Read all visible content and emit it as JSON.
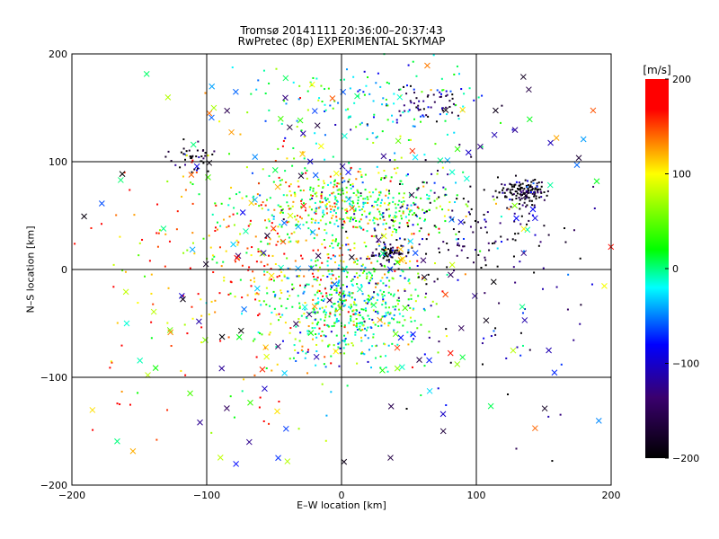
{
  "chart": {
    "title_line1": "Tromsø 20141111 20:36:00–20:37:43",
    "title_line2": "RwPretec (8p) EXPERIMENTAL SKYMAP",
    "xlabel": "E–W location [km]",
    "ylabel": "N–S location [km]",
    "colorbar_label": "[m/s]"
  },
  "chart_data": {
    "type": "scatter",
    "title": "Tromsø 20141111 20:36:00–20:37:43",
    "subtitle": "RwPretec (8p) EXPERIMENTAL SKYMAP",
    "xlabel": "E–W location [km]",
    "ylabel": "N–S location [km]",
    "xlim": [
      -200,
      200
    ],
    "ylim": [
      -200,
      200
    ],
    "xticks": [
      -200,
      -100,
      0,
      100,
      200
    ],
    "yticks": [
      -200,
      -100,
      0,
      100,
      200
    ],
    "grid": true,
    "colorbar": {
      "label": "[m/s]",
      "range": [
        -200,
        200
      ],
      "ticks": [
        200,
        100,
        0,
        -100,
        -200
      ],
      "colormap": [
        "#000000",
        "#3a006e",
        "#0000ff",
        "#00ffff",
        "#00ff00",
        "#ffff00",
        "#ff0000"
      ]
    },
    "markers": [
      "dot",
      "cross"
    ],
    "clusters": [
      {
        "x": 135,
        "y": 72,
        "spread": [
          9,
          6
        ],
        "count": 140,
        "velocity": -200,
        "marker": "dot"
      },
      {
        "x": 38,
        "y": 15,
        "spread": [
          7,
          3
        ],
        "count": 60,
        "velocity": -200,
        "marker": "dot"
      },
      {
        "x": -112,
        "y": 105,
        "spread": [
          9,
          7
        ],
        "count": 40,
        "velocity": -195,
        "marker": "dot"
      },
      {
        "x": 60,
        "y": 155,
        "spread": [
          18,
          8
        ],
        "count": 60,
        "velocity": -140,
        "marker": "dot"
      },
      {
        "x": 5,
        "y": -35,
        "spread": [
          28,
          25
        ],
        "count": 500,
        "velocity": 30,
        "marker": "dot"
      },
      {
        "x": 10,
        "y": 60,
        "spread": [
          40,
          15
        ],
        "count": 380,
        "velocity": 60,
        "marker": "dot"
      },
      {
        "x": -20,
        "y": 20,
        "spread": [
          45,
          40
        ],
        "count": 300,
        "velocity": 140,
        "marker": "dot"
      },
      {
        "x": 20,
        "y": 150,
        "spread": [
          45,
          25
        ],
        "count": 150,
        "velocity": 20,
        "marker": "dot"
      },
      {
        "x": 80,
        "y": 40,
        "spread": [
          40,
          25
        ],
        "count": 160,
        "velocity": -160,
        "marker": "dot"
      },
      {
        "x": -80,
        "y": -20,
        "spread": [
          60,
          70
        ],
        "count": 180,
        "velocity": 170,
        "marker": "dot"
      },
      {
        "x": 120,
        "y": -40,
        "spread": [
          50,
          60
        ],
        "count": 70,
        "velocity": -120,
        "marker": "dot"
      },
      {
        "x": 0,
        "y": 0,
        "spread": [
          120,
          120
        ],
        "count": 250,
        "velocity": 0,
        "marker": "cross"
      }
    ]
  }
}
